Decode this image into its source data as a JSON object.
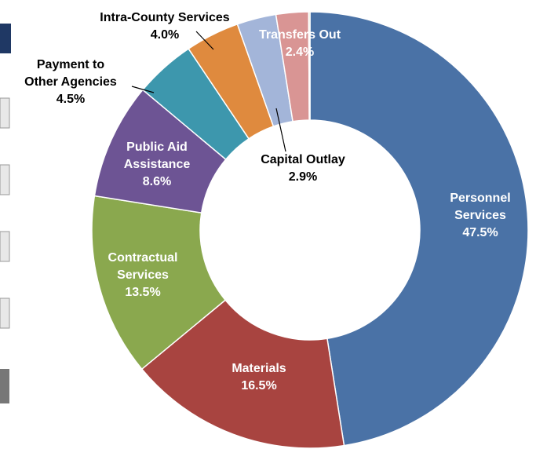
{
  "chart_data": {
    "type": "donut",
    "categories": [
      "Personnel Services",
      "Materials",
      "Contractual Services",
      "Public Aid Assistance",
      "Payment to Other Agencies",
      "Intra-County Services",
      "Capital Outlay",
      "Transfers Out",
      null
    ],
    "values": [
      47.5,
      16.5,
      13.5,
      8.6,
      4.5,
      4.0,
      2.9,
      2.4,
      0.1
    ],
    "value_labels": [
      "47.5%",
      "16.5%",
      "13.5%",
      "8.6%",
      "4.5%",
      "4.0%",
      "2.9%",
      "2.4%",
      null
    ],
    "colors": [
      "#4a72a6",
      "#a84440",
      "#8aa84e",
      "#6d5494",
      "#3d97ad",
      "#df8a3e",
      "#a3b5d9",
      "#d99594",
      "#c4d79b"
    ]
  }
}
